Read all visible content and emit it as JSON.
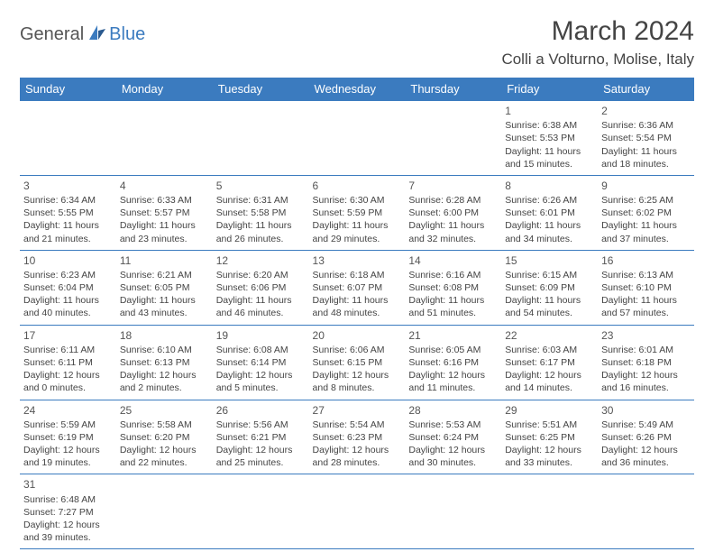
{
  "logo": {
    "text1": "General",
    "text2": "Blue"
  },
  "title": "March 2024",
  "location": "Colli a Volturno, Molise, Italy",
  "colors": {
    "header_bg": "#3b7bbf",
    "header_text": "#ffffff",
    "border": "#3b7bbf",
    "body_text": "#444444",
    "logo_gray": "#555555",
    "logo_blue": "#3b7bbf",
    "background": "#ffffff"
  },
  "weekdays": [
    "Sunday",
    "Monday",
    "Tuesday",
    "Wednesday",
    "Thursday",
    "Friday",
    "Saturday"
  ],
  "weeks": [
    [
      null,
      null,
      null,
      null,
      null,
      {
        "d": "1",
        "sr": "6:38 AM",
        "ss": "5:53 PM",
        "dl": "11 hours and 15 minutes."
      },
      {
        "d": "2",
        "sr": "6:36 AM",
        "ss": "5:54 PM",
        "dl": "11 hours and 18 minutes."
      }
    ],
    [
      {
        "d": "3",
        "sr": "6:34 AM",
        "ss": "5:55 PM",
        "dl": "11 hours and 21 minutes."
      },
      {
        "d": "4",
        "sr": "6:33 AM",
        "ss": "5:57 PM",
        "dl": "11 hours and 23 minutes."
      },
      {
        "d": "5",
        "sr": "6:31 AM",
        "ss": "5:58 PM",
        "dl": "11 hours and 26 minutes."
      },
      {
        "d": "6",
        "sr": "6:30 AM",
        "ss": "5:59 PM",
        "dl": "11 hours and 29 minutes."
      },
      {
        "d": "7",
        "sr": "6:28 AM",
        "ss": "6:00 PM",
        "dl": "11 hours and 32 minutes."
      },
      {
        "d": "8",
        "sr": "6:26 AM",
        "ss": "6:01 PM",
        "dl": "11 hours and 34 minutes."
      },
      {
        "d": "9",
        "sr": "6:25 AM",
        "ss": "6:02 PM",
        "dl": "11 hours and 37 minutes."
      }
    ],
    [
      {
        "d": "10",
        "sr": "6:23 AM",
        "ss": "6:04 PM",
        "dl": "11 hours and 40 minutes."
      },
      {
        "d": "11",
        "sr": "6:21 AM",
        "ss": "6:05 PM",
        "dl": "11 hours and 43 minutes."
      },
      {
        "d": "12",
        "sr": "6:20 AM",
        "ss": "6:06 PM",
        "dl": "11 hours and 46 minutes."
      },
      {
        "d": "13",
        "sr": "6:18 AM",
        "ss": "6:07 PM",
        "dl": "11 hours and 48 minutes."
      },
      {
        "d": "14",
        "sr": "6:16 AM",
        "ss": "6:08 PM",
        "dl": "11 hours and 51 minutes."
      },
      {
        "d": "15",
        "sr": "6:15 AM",
        "ss": "6:09 PM",
        "dl": "11 hours and 54 minutes."
      },
      {
        "d": "16",
        "sr": "6:13 AM",
        "ss": "6:10 PM",
        "dl": "11 hours and 57 minutes."
      }
    ],
    [
      {
        "d": "17",
        "sr": "6:11 AM",
        "ss": "6:11 PM",
        "dl": "12 hours and 0 minutes."
      },
      {
        "d": "18",
        "sr": "6:10 AM",
        "ss": "6:13 PM",
        "dl": "12 hours and 2 minutes."
      },
      {
        "d": "19",
        "sr": "6:08 AM",
        "ss": "6:14 PM",
        "dl": "12 hours and 5 minutes."
      },
      {
        "d": "20",
        "sr": "6:06 AM",
        "ss": "6:15 PM",
        "dl": "12 hours and 8 minutes."
      },
      {
        "d": "21",
        "sr": "6:05 AM",
        "ss": "6:16 PM",
        "dl": "12 hours and 11 minutes."
      },
      {
        "d": "22",
        "sr": "6:03 AM",
        "ss": "6:17 PM",
        "dl": "12 hours and 14 minutes."
      },
      {
        "d": "23",
        "sr": "6:01 AM",
        "ss": "6:18 PM",
        "dl": "12 hours and 16 minutes."
      }
    ],
    [
      {
        "d": "24",
        "sr": "5:59 AM",
        "ss": "6:19 PM",
        "dl": "12 hours and 19 minutes."
      },
      {
        "d": "25",
        "sr": "5:58 AM",
        "ss": "6:20 PM",
        "dl": "12 hours and 22 minutes."
      },
      {
        "d": "26",
        "sr": "5:56 AM",
        "ss": "6:21 PM",
        "dl": "12 hours and 25 minutes."
      },
      {
        "d": "27",
        "sr": "5:54 AM",
        "ss": "6:23 PM",
        "dl": "12 hours and 28 minutes."
      },
      {
        "d": "28",
        "sr": "5:53 AM",
        "ss": "6:24 PM",
        "dl": "12 hours and 30 minutes."
      },
      {
        "d": "29",
        "sr": "5:51 AM",
        "ss": "6:25 PM",
        "dl": "12 hours and 33 minutes."
      },
      {
        "d": "30",
        "sr": "5:49 AM",
        "ss": "6:26 PM",
        "dl": "12 hours and 36 minutes."
      }
    ],
    [
      {
        "d": "31",
        "sr": "6:48 AM",
        "ss": "7:27 PM",
        "dl": "12 hours and 39 minutes."
      },
      null,
      null,
      null,
      null,
      null,
      null
    ]
  ],
  "labels": {
    "sunrise": "Sunrise:",
    "sunset": "Sunset:",
    "daylight": "Daylight:"
  }
}
